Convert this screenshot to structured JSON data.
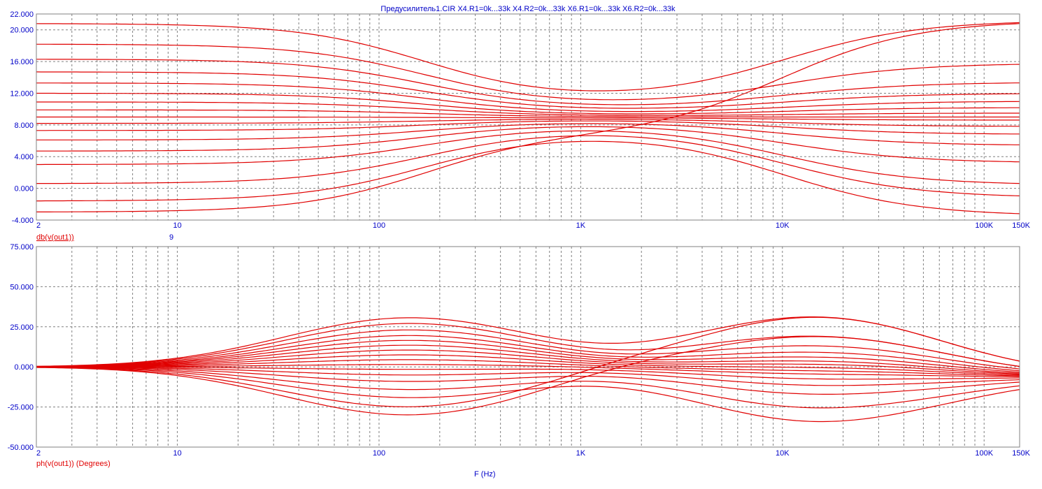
{
  "title": "Предусилитель1.CIR X4.R1=0k...33k X4.R2=0k...33k X6.R1=0k...33k X6.R2=0k...33k",
  "xlabel": "F (Hz)",
  "cursor_value": "9",
  "colors": {
    "axis_text": "#0000c8",
    "trace": "#e00000",
    "grid": "#808080"
  },
  "chart_data": [
    {
      "type": "line",
      "name": "magnitude",
      "ylabel": "db(v(out1))",
      "xscale": "log",
      "xlim": [
        2,
        150000
      ],
      "ylim": [
        -4,
        22
      ],
      "x_tick_labels": [
        "2",
        "10",
        "100",
        "1K",
        "10K",
        "100K",
        "150K"
      ],
      "y_tick_labels": [
        "22.000",
        "20.000",
        "16.000",
        "12.000",
        "8.000",
        "4.000",
        "0.000",
        "-4.000"
      ],
      "grid": true,
      "bass_levels_db": [
        20.8,
        18.2,
        16.3,
        14.7,
        13.3,
        12.0,
        10.9,
        9.9,
        9.0,
        8.2,
        7.3,
        6.1,
        4.7,
        3.0,
        0.6,
        -1.6,
        -3.0
      ],
      "mid_levels_db": [
        11.1,
        10.4,
        10.0,
        9.7,
        9.4,
        9.2,
        9.1,
        9.0,
        8.9,
        8.8,
        8.7,
        8.5,
        8.3,
        8.0,
        7.6,
        7.1,
        6.8
      ],
      "treble_levels_db": [
        21.2,
        15.8,
        13.4,
        12.0,
        11.0,
        10.2,
        9.5,
        9.0,
        8.6,
        7.8,
        6.8,
        5.4,
        3.2,
        0.4,
        -1.2,
        -3.5
      ]
    },
    {
      "type": "line",
      "name": "phase",
      "ylabel": "ph(v(out1)) (Degrees)",
      "xscale": "log",
      "xlim": [
        2,
        150000
      ],
      "ylim": [
        -50,
        75
      ],
      "x_tick_labels": [
        "2",
        "10",
        "100",
        "1K",
        "10K",
        "100K",
        "150K"
      ],
      "y_tick_labels": [
        "75.000",
        "50.000",
        "25.000",
        "0.000",
        "-25.000",
        "-50.000"
      ],
      "grid": true,
      "bass_peak_deg": [
        30.5,
        27.0,
        23.0,
        19.5,
        16.5,
        13.5,
        10.5,
        7.5,
        4.5,
        1.5,
        -1.5,
        -5.0,
        -9.0,
        -14.0,
        -19.0,
        -25.0,
        -30.0
      ],
      "treble_peak_deg": [
        31.5,
        19.5,
        13.5,
        9.5,
        6.5,
        4.0,
        2.0,
        0.0,
        -2.0,
        -4.0,
        -7.0,
        -11.0,
        -16.5,
        -25.0,
        -33.5
      ]
    }
  ]
}
